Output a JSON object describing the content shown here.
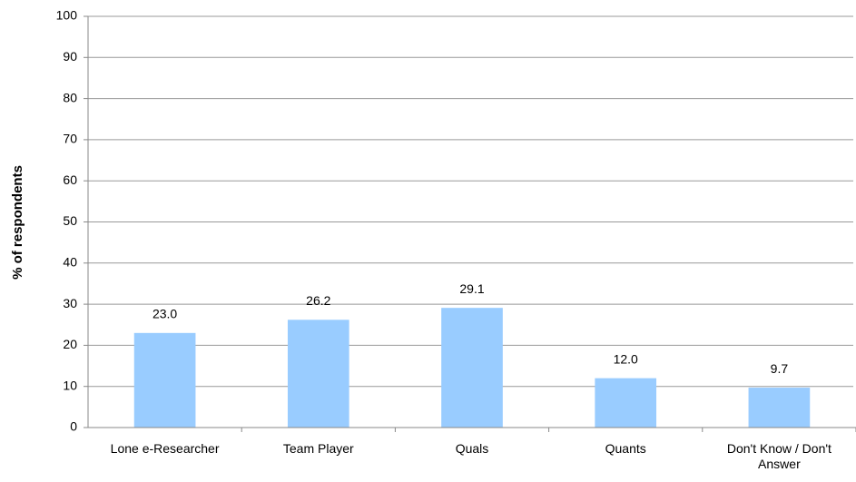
{
  "chart_data": {
    "type": "bar",
    "ylabel": "% of respondents",
    "categories": [
      "Lone e-Researcher",
      "Team Player",
      "Quals",
      "Quants",
      "Don't Know / Don't Answer"
    ],
    "values": [
      23.0,
      26.2,
      29.1,
      12.0,
      9.7
    ],
    "value_labels": [
      "23.0",
      "26.2",
      "29.1",
      "12.0",
      "9.7"
    ],
    "color": "#99ccff",
    "ylim": [
      0,
      100
    ],
    "yticks": [
      0,
      10,
      20,
      30,
      40,
      50,
      60,
      70,
      80,
      90,
      100
    ],
    "grid": true
  }
}
